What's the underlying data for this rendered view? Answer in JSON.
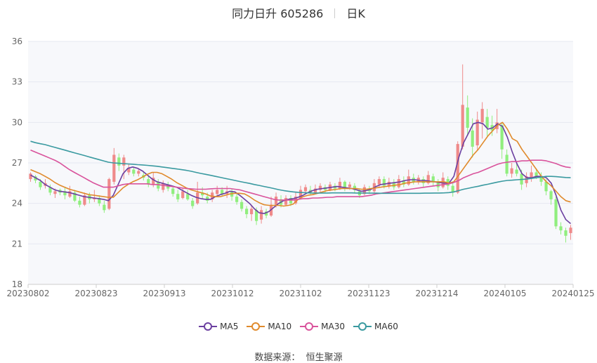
{
  "header": {
    "title": "同力日升 605286",
    "period": "日K"
  },
  "source": {
    "label": "数据来源：",
    "value": "恒生聚源"
  },
  "colors": {
    "up": "#ef8a8a",
    "down": "#90ee7e",
    "ma5": "#6b3fa0",
    "ma10": "#e08a2c",
    "ma30": "#d9539c",
    "ma60": "#3a9aa0",
    "grid": "#e6e9f0",
    "plot_bg": "#f7f8fb"
  },
  "chart_data": {
    "type": "candlestick",
    "title": "同力日升 605286",
    "y_ticks": [
      18,
      21,
      24,
      27,
      30,
      33,
      36
    ],
    "ylim": [
      18,
      36
    ],
    "x_tick_labels": [
      "20230802",
      "20230823",
      "20230913",
      "20231012",
      "20231102",
      "20231123",
      "20231214",
      "20240105",
      "20240125"
    ],
    "candles": [
      [
        25.8,
        26.2,
        26.3,
        25.6
      ],
      [
        26.0,
        25.7,
        26.1,
        25.5
      ],
      [
        25.6,
        25.2,
        25.8,
        25.0
      ],
      [
        25.3,
        25.5,
        25.8,
        25.1
      ],
      [
        25.2,
        24.8,
        25.4,
        24.6
      ],
      [
        24.7,
        24.9,
        25.1,
        24.4
      ],
      [
        25.0,
        24.8,
        25.1,
        24.6
      ],
      [
        24.9,
        24.6,
        25.2,
        24.3
      ],
      [
        24.5,
        24.9,
        25.3,
        24.4
      ],
      [
        24.8,
        24.2,
        25.0,
        24.1
      ],
      [
        24.2,
        23.9,
        24.5,
        23.7
      ],
      [
        23.9,
        24.6,
        24.8,
        23.8
      ],
      [
        24.6,
        24.3,
        24.8,
        24.0
      ],
      [
        24.3,
        24.4,
        25.0,
        24.1
      ],
      [
        24.4,
        24.0,
        24.6,
        23.8
      ],
      [
        23.9,
        23.5,
        24.2,
        23.3
      ],
      [
        23.6,
        25.8,
        25.9,
        23.5
      ],
      [
        25.6,
        27.6,
        28.1,
        25.4
      ],
      [
        27.4,
        26.8,
        27.7,
        26.4
      ],
      [
        26.8,
        27.4,
        27.6,
        25.8
      ],
      [
        26.3,
        26.6,
        26.9,
        26.1
      ],
      [
        26.5,
        26.2,
        26.7,
        26.0
      ],
      [
        26.2,
        26.4,
        26.6,
        26.0
      ],
      [
        26.1,
        25.9,
        26.4,
        25.7
      ],
      [
        25.8,
        25.4,
        26.0,
        25.2
      ],
      [
        25.4,
        25.9,
        26.3,
        25.2
      ],
      [
        25.6,
        25.1,
        25.8,
        24.9
      ],
      [
        25.0,
        25.5,
        25.7,
        24.8
      ],
      [
        25.4,
        25.1,
        25.6,
        24.9
      ],
      [
        25.1,
        24.7,
        25.3,
        24.5
      ],
      [
        24.7,
        24.3,
        25.0,
        24.1
      ],
      [
        24.4,
        24.9,
        25.1,
        24.3
      ],
      [
        24.7,
        24.3,
        25.0,
        24.2
      ],
      [
        24.2,
        23.8,
        24.4,
        23.6
      ],
      [
        24.0,
        24.8,
        25.6,
        23.9
      ],
      [
        24.8,
        24.6,
        25.2,
        24.3
      ],
      [
        24.5,
        24.2,
        24.8,
        24.0
      ],
      [
        24.3,
        24.8,
        25.0,
        24.1
      ],
      [
        24.7,
        25.0,
        25.3,
        24.5
      ],
      [
        25.0,
        24.7,
        25.2,
        24.5
      ],
      [
        24.7,
        24.9,
        25.3,
        24.4
      ],
      [
        24.9,
        24.5,
        25.1,
        24.2
      ],
      [
        24.5,
        24.1,
        24.7,
        23.9
      ],
      [
        24.1,
        23.6,
        24.3,
        23.4
      ],
      [
        23.6,
        23.2,
        23.8,
        22.9
      ],
      [
        23.2,
        23.6,
        23.9,
        22.7
      ],
      [
        23.5,
        22.7,
        23.7,
        22.4
      ],
      [
        22.8,
        23.5,
        23.8,
        22.5
      ],
      [
        23.4,
        23.1,
        23.6,
        22.9
      ],
      [
        23.1,
        23.9,
        24.5,
        23.0
      ],
      [
        23.9,
        24.5,
        24.8,
        23.7
      ],
      [
        24.3,
        23.9,
        24.6,
        23.7
      ],
      [
        23.9,
        24.4,
        24.6,
        23.8
      ],
      [
        24.4,
        24.0,
        24.6,
        23.8
      ],
      [
        24.0,
        24.5,
        24.8,
        23.9
      ],
      [
        24.4,
        25.0,
        25.3,
        24.3
      ],
      [
        24.9,
        25.2,
        25.4,
        24.7
      ],
      [
        25.0,
        24.8,
        25.3,
        24.6
      ],
      [
        24.8,
        25.1,
        25.4,
        24.7
      ],
      [
        25.0,
        25.3,
        25.5,
        24.8
      ],
      [
        25.2,
        25.0,
        25.4,
        24.8
      ],
      [
        25.0,
        25.4,
        25.6,
        24.9
      ],
      [
        25.3,
        25.1,
        25.5,
        24.9
      ],
      [
        25.1,
        25.6,
        25.9,
        25.0
      ],
      [
        25.6,
        25.2,
        25.7,
        24.9
      ],
      [
        25.2,
        25.4,
        25.6,
        25.0
      ],
      [
        25.3,
        25.0,
        25.5,
        24.8
      ],
      [
        24.9,
        24.6,
        25.1,
        24.4
      ],
      [
        24.7,
        25.2,
        25.4,
        24.6
      ],
      [
        25.1,
        24.9,
        25.3,
        24.7
      ],
      [
        24.9,
        25.5,
        25.8,
        24.8
      ],
      [
        25.4,
        25.8,
        26.0,
        25.2
      ],
      [
        25.8,
        25.3,
        26.0,
        25.1
      ],
      [
        25.3,
        25.6,
        25.9,
        25.1
      ],
      [
        25.5,
        25.2,
        25.8,
        25.0
      ],
      [
        25.2,
        25.8,
        26.1,
        25.1
      ],
      [
        25.7,
        25.4,
        26.0,
        25.2
      ],
      [
        25.4,
        26.0,
        26.5,
        25.3
      ],
      [
        25.9,
        25.6,
        26.2,
        25.4
      ],
      [
        25.6,
        25.9,
        26.1,
        25.4
      ],
      [
        25.8,
        25.5,
        26.0,
        25.2
      ],
      [
        25.5,
        26.1,
        26.4,
        25.4
      ],
      [
        26.0,
        25.6,
        26.2,
        25.3
      ],
      [
        25.6,
        25.2,
        25.8,
        24.9
      ],
      [
        25.2,
        25.9,
        26.3,
        25.1
      ],
      [
        25.8,
        25.3,
        26.0,
        25.0
      ],
      [
        25.3,
        24.8,
        25.5,
        24.5
      ],
      [
        24.8,
        28.4,
        28.6,
        24.7
      ],
      [
        28.2,
        31.3,
        34.3,
        28.0
      ],
      [
        31.1,
        29.6,
        32.0,
        29.0
      ],
      [
        29.4,
        28.2,
        30.3,
        27.4
      ],
      [
        28.3,
        30.2,
        30.8,
        27.9
      ],
      [
        30.0,
        31.0,
        31.5,
        28.8
      ],
      [
        30.4,
        29.6,
        31.0,
        29.0
      ],
      [
        29.8,
        29.4,
        30.5,
        29.0
      ],
      [
        29.5,
        30.0,
        31.0,
        29.2
      ],
      [
        29.8,
        28.0,
        30.0,
        27.3
      ],
      [
        27.6,
        26.2,
        28.0,
        26.0
      ],
      [
        26.2,
        26.6,
        27.0,
        25.9
      ],
      [
        26.5,
        26.2,
        27.0,
        26.0
      ],
      [
        26.2,
        25.4,
        26.5,
        25.0
      ],
      [
        25.5,
        26.0,
        26.3,
        25.2
      ],
      [
        25.9,
        26.3,
        26.8,
        25.6
      ],
      [
        26.3,
        26.0,
        26.6,
        25.8
      ],
      [
        26.0,
        25.6,
        26.3,
        25.3
      ],
      [
        25.6,
        24.9,
        25.8,
        24.6
      ],
      [
        24.9,
        24.3,
        25.0,
        23.9
      ],
      [
        24.3,
        22.3,
        24.5,
        22.1
      ],
      [
        22.3,
        22.0,
        22.6,
        21.7
      ],
      [
        22.0,
        21.6,
        22.2,
        21.1
      ],
      [
        21.8,
        22.2,
        22.4,
        21.3
      ]
    ],
    "series": [
      {
        "name": "MA5",
        "color": "#6b3fa0",
        "values": [
          26.1,
          25.9,
          25.7,
          25.4,
          25.2,
          25.0,
          24.9,
          24.85,
          24.8,
          24.7,
          24.6,
          24.5,
          24.45,
          24.4,
          24.35,
          24.3,
          24.2,
          24.6,
          25.4,
          26.2,
          26.6,
          26.7,
          26.6,
          26.4,
          26.1,
          25.8,
          25.6,
          25.5,
          25.4,
          25.3,
          25.2,
          25.0,
          24.8,
          24.6,
          24.45,
          24.35,
          24.3,
          24.3,
          24.5,
          24.65,
          24.75,
          24.9,
          24.85,
          24.6,
          24.3,
          24.0,
          23.6,
          23.3,
          23.25,
          23.4,
          23.7,
          24.0,
          24.2,
          24.3,
          24.35,
          24.45,
          24.6,
          24.8,
          24.95,
          25.05,
          25.1,
          25.15,
          25.2,
          25.25,
          25.2,
          25.15,
          25.1,
          25.0,
          24.9,
          24.95,
          25.05,
          25.25,
          25.4,
          25.45,
          25.5,
          25.55,
          25.6,
          25.7,
          25.75,
          25.75,
          25.7,
          25.7,
          25.65,
          25.6,
          25.55,
          25.5,
          25.5,
          26.0,
          27.4,
          28.5,
          29.2,
          29.9,
          30.0,
          29.9,
          29.5,
          29.6,
          29.9,
          29.7,
          28.9,
          27.8,
          26.9,
          26.2,
          25.9,
          25.9,
          26.0,
          26.0,
          25.9,
          25.5,
          24.6,
          23.5,
          22.8,
          22.5
        ]
      },
      {
        "name": "MA10",
        "color": "#e08a2c",
        "values": [
          26.5,
          26.35,
          26.2,
          26.0,
          25.8,
          25.55,
          25.35,
          25.2,
          25.05,
          24.95,
          24.85,
          24.75,
          24.65,
          24.6,
          24.55,
          24.5,
          24.45,
          24.45,
          24.8,
          25.15,
          25.4,
          25.6,
          25.75,
          25.95,
          26.15,
          26.3,
          26.3,
          26.2,
          26.0,
          25.8,
          25.55,
          25.35,
          25.15,
          25.0,
          24.9,
          24.8,
          24.7,
          24.55,
          24.5,
          24.5,
          24.6,
          24.7,
          24.75,
          24.75,
          24.7,
          24.5,
          24.25,
          24.05,
          23.9,
          23.85,
          23.85,
          23.85,
          23.8,
          23.85,
          23.95,
          24.3,
          24.5,
          24.6,
          24.65,
          24.75,
          24.85,
          24.95,
          25.0,
          25.05,
          25.1,
          25.1,
          25.1,
          25.1,
          25.05,
          25.05,
          25.1,
          25.15,
          25.2,
          25.25,
          25.3,
          25.35,
          25.4,
          25.5,
          25.55,
          25.6,
          25.6,
          25.6,
          25.6,
          25.6,
          25.6,
          25.6,
          25.5,
          25.6,
          26.1,
          26.6,
          27.1,
          27.6,
          28.0,
          28.5,
          29.0,
          29.4,
          29.8,
          30.0,
          29.5,
          28.8,
          28.6,
          28.0,
          27.5,
          27.0,
          26.5,
          26.0,
          25.6,
          25.3,
          24.9,
          24.5,
          24.2,
          24.1
        ]
      },
      {
        "name": "MA30",
        "color": "#d9539c",
        "values": [
          27.95,
          27.8,
          27.65,
          27.5,
          27.35,
          27.2,
          27.0,
          26.75,
          26.5,
          26.3,
          26.1,
          25.9,
          25.7,
          25.5,
          25.35,
          25.2,
          25.2,
          25.2,
          25.3,
          25.4,
          25.45,
          25.45,
          25.45,
          25.45,
          25.45,
          25.4,
          25.4,
          25.35,
          25.3,
          25.25,
          25.2,
          25.15,
          25.1,
          25.08,
          25.05,
          25.05,
          25.05,
          25.08,
          25.1,
          25.1,
          25.1,
          25.1,
          25.05,
          25.0,
          24.9,
          24.8,
          24.7,
          24.6,
          24.5,
          24.4,
          24.3,
          24.25,
          24.25,
          24.25,
          24.25,
          24.3,
          24.35,
          24.35,
          24.4,
          24.4,
          24.42,
          24.45,
          24.45,
          24.5,
          24.5,
          24.5,
          24.5,
          24.5,
          24.5,
          24.55,
          24.6,
          24.7,
          24.75,
          24.8,
          24.85,
          24.9,
          24.95,
          25.0,
          25.05,
          25.1,
          25.15,
          25.2,
          25.25,
          25.3,
          25.35,
          25.4,
          25.45,
          25.55,
          25.7,
          25.9,
          26.05,
          26.2,
          26.3,
          26.45,
          26.6,
          26.75,
          26.9,
          27.0,
          27.05,
          27.1,
          27.1,
          27.15,
          27.15,
          27.2,
          27.2,
          27.2,
          27.15,
          27.05,
          26.95,
          26.8,
          26.7,
          26.65
        ]
      },
      {
        "name": "MA60",
        "color": "#3a9aa0",
        "values": [
          28.6,
          28.5,
          28.42,
          28.35,
          28.25,
          28.15,
          28.05,
          27.95,
          27.85,
          27.75,
          27.65,
          27.55,
          27.45,
          27.35,
          27.25,
          27.15,
          27.05,
          27.0,
          26.98,
          26.95,
          26.92,
          26.9,
          26.87,
          26.85,
          26.82,
          26.78,
          26.75,
          26.7,
          26.65,
          26.6,
          26.55,
          26.5,
          26.45,
          26.38,
          26.3,
          26.22,
          26.15,
          26.08,
          26.0,
          25.93,
          25.85,
          25.78,
          25.7,
          25.62,
          25.55,
          25.48,
          25.4,
          25.33,
          25.25,
          25.18,
          25.1,
          25.02,
          24.95,
          24.9,
          24.85,
          24.82,
          24.8,
          24.78,
          24.77,
          24.77,
          24.77,
          24.77,
          24.78,
          24.78,
          24.78,
          24.78,
          24.78,
          24.77,
          24.77,
          24.77,
          24.76,
          24.76,
          24.75,
          24.75,
          24.75,
          24.75,
          24.75,
          24.75,
          24.75,
          24.75,
          24.75,
          24.76,
          24.76,
          24.77,
          24.77,
          24.78,
          24.8,
          24.85,
          24.95,
          25.05,
          25.12,
          25.2,
          25.27,
          25.35,
          25.42,
          25.5,
          25.58,
          25.65,
          25.7,
          25.72,
          25.75,
          25.78,
          25.8,
          25.85,
          25.9,
          25.95,
          26.0,
          26.0,
          25.98,
          25.95,
          25.92,
          25.9
        ]
      }
    ]
  }
}
